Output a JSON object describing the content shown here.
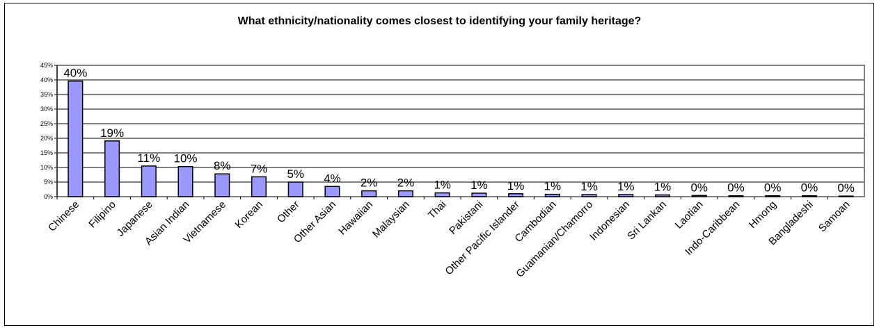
{
  "chart_data": {
    "type": "bar",
    "title": "What ethnicity/nationality comes closest to identifying your family heritage?",
    "xlabel": "",
    "ylabel": "",
    "ylim": [
      0,
      45
    ],
    "y_ticks": [
      "0%",
      "5%",
      "10%",
      "15%",
      "20%",
      "25%",
      "30%",
      "35%",
      "40%",
      "45%"
    ],
    "grid": true,
    "legend": "none",
    "categories": [
      "Chinese",
      "Filipino",
      "Japanese",
      "Asian Indian",
      "Vietnamese",
      "Korean",
      "Other",
      "Other Asian",
      "Hawaiian",
      "Malaysian",
      "Thai",
      "Pakistani",
      "Other Pacific Islander",
      "Cambodian",
      "Guamanian/Chamorro",
      "Indonesian",
      "Sri Lankan",
      "Laotian",
      "Indo-Caribbean",
      "Hmong",
      "Bangladeshi",
      "Samoan"
    ],
    "values": [
      39.6,
      19.1,
      10.5,
      10.3,
      7.8,
      6.8,
      5.0,
      3.5,
      2.0,
      2.0,
      1.3,
      1.2,
      1.0,
      0.8,
      0.7,
      0.7,
      0.6,
      0.4,
      0.3,
      0.3,
      0.3,
      0.2
    ],
    "data_labels": [
      "40%",
      "19%",
      "11%",
      "10%",
      "8%",
      "7%",
      "5%",
      "4%",
      "2%",
      "2%",
      "1%",
      "1%",
      "1%",
      "1%",
      "1%",
      "1%",
      "1%",
      "0%",
      "0%",
      "0%",
      "0%",
      "0%"
    ],
    "colors": {
      "bar_fill": "#9999ff",
      "bar_stroke": "#000000",
      "plot_border": "#808080",
      "grid": "#000000"
    }
  }
}
